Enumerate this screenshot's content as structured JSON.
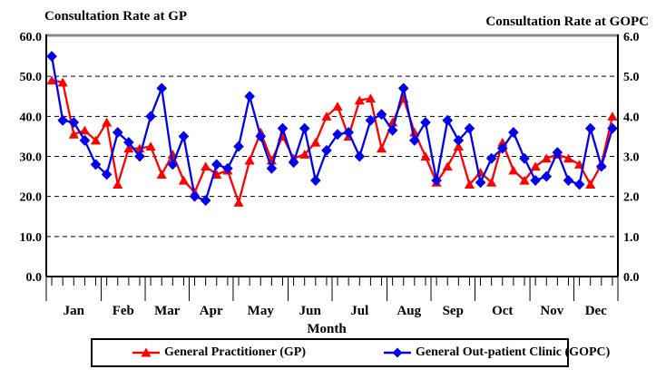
{
  "titles": {
    "left_axis_title": "Consultation Rate at GP",
    "right_axis_title": "Consultation Rate at GOPC",
    "x_axis_title": "Month"
  },
  "legend": {
    "gp_label": "General Practitioner (GP)",
    "gopc_label": "General Out-patient Clinic (GOPC)"
  },
  "colors": {
    "gp": "#FF0000",
    "gopc": "#0000EE",
    "axis": "#000000",
    "top_border": "#8a8a8a",
    "grid": "#000000"
  },
  "chart_data": {
    "type": "line",
    "x_unit": "week",
    "x_axis_title": "Month",
    "months": [
      {
        "label": "Jan",
        "weeks": 5
      },
      {
        "label": "Feb",
        "weeks": 4
      },
      {
        "label": "Mar",
        "weeks": 4
      },
      {
        "label": "Apr",
        "weeks": 4
      },
      {
        "label": "May",
        "weeks": 5
      },
      {
        "label": "Jun",
        "weeks": 4
      },
      {
        "label": "Jul",
        "weeks": 5
      },
      {
        "label": "Aug",
        "weeks": 4
      },
      {
        "label": "Sep",
        "weeks": 4
      },
      {
        "label": "Oct",
        "weeks": 5
      },
      {
        "label": "Nov",
        "weeks": 4
      },
      {
        "label": "Dec",
        "weeks": 4
      }
    ],
    "left_axis": {
      "title": "Consultation Rate at GP",
      "range": [
        0,
        60
      ],
      "ticks": [
        "60.0",
        "50.0",
        "40.0",
        "30.0",
        "20.0",
        "10.0",
        "0.0"
      ],
      "gridlines_at": [
        50,
        40,
        30,
        20,
        10
      ],
      "grid_style": "dashed"
    },
    "right_axis": {
      "title": "Consultation Rate at GOPC",
      "range": [
        0,
        6
      ],
      "ticks": [
        "6.0",
        "5.0",
        "4.0",
        "3.0",
        "2.0",
        "1.0",
        "0.0"
      ]
    },
    "series": [
      {
        "name": "General Practitioner (GP)",
        "axis": "left",
        "color": "#FF0000",
        "marker": "triangle",
        "values": [
          49,
          48.5,
          35.5,
          36.5,
          34,
          38.5,
          23,
          32,
          32,
          32.5,
          25.5,
          30.5,
          24,
          21,
          27.5,
          25.5,
          26.5,
          18.5,
          29,
          36,
          29,
          35,
          29.5,
          30.5,
          33.5,
          40,
          42.5,
          35,
          44,
          44.5,
          32,
          38.5,
          44.5,
          36,
          30,
          23.5,
          27.5,
          32.5,
          23,
          26,
          23.5,
          33.5,
          26.5,
          24,
          27.5,
          29.5,
          30.5,
          29.5,
          28,
          23,
          28,
          40
        ]
      },
      {
        "name": "General Out-patient Clinic (GOPC)",
        "axis": "right",
        "color": "#0000EE",
        "marker": "diamond",
        "values": [
          5.5,
          3.9,
          3.85,
          3.4,
          2.8,
          2.55,
          3.6,
          3.35,
          3.0,
          4.0,
          4.7,
          2.8,
          3.5,
          2.0,
          1.9,
          2.8,
          2.7,
          3.25,
          4.5,
          3.5,
          2.7,
          3.7,
          2.85,
          3.7,
          2.4,
          3.15,
          3.55,
          3.6,
          3.0,
          3.9,
          4.05,
          3.65,
          4.7,
          3.4,
          3.85,
          2.4,
          3.9,
          3.4,
          3.7,
          2.35,
          2.95,
          3.2,
          3.6,
          2.95,
          2.4,
          2.5,
          3.1,
          2.4,
          2.3,
          3.7,
          2.75,
          3.7
        ]
      }
    ],
    "legend_position": "bottom"
  }
}
